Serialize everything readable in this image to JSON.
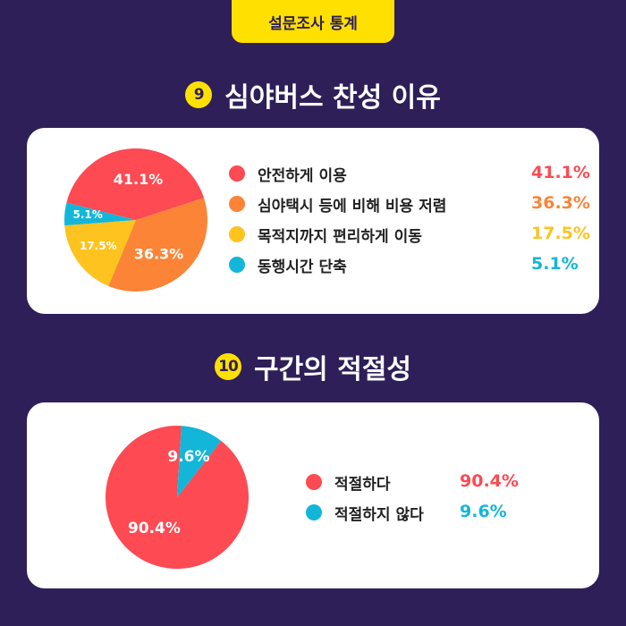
{
  "badge": "설문조사 통계",
  "chart_data": [
    {
      "type": "pie",
      "number": "9",
      "title": "심야버스 찬성 이유",
      "slices": [
        {
          "label": "안전하게 이용",
          "value": 41.1,
          "display": "41.1%",
          "color": "#fd4a53"
        },
        {
          "label": "심야택시 등에 비해 비용 저렴",
          "value": 36.3,
          "display": "36.3%",
          "color": "#fb8436"
        },
        {
          "label": "목적지까지 편리하게 이동",
          "value": 17.5,
          "display": "17.5%",
          "color": "#fec31e"
        },
        {
          "label": "동행시간 단축",
          "value": 5.1,
          "display": "5.1%",
          "color": "#13b6d9"
        }
      ]
    },
    {
      "type": "pie",
      "number": "10",
      "title": "구간의 적절성",
      "slices": [
        {
          "label": "적절하다",
          "value": 90.4,
          "display": "90.4%",
          "color": "#fd4a53"
        },
        {
          "label": "적절하지 않다",
          "value": 9.6,
          "display": "9.6%",
          "color": "#13b6d9"
        }
      ]
    }
  ]
}
